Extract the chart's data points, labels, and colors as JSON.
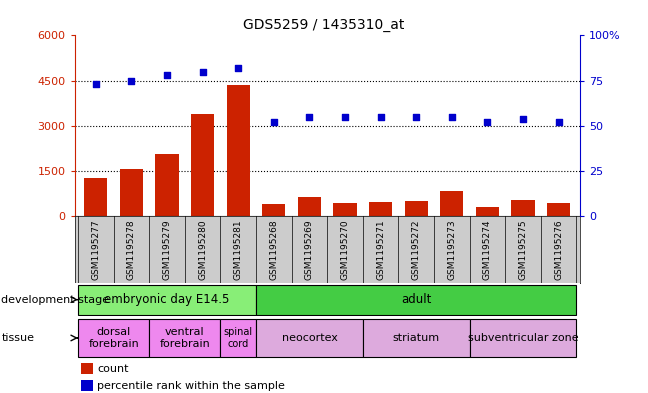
{
  "title": "GDS5259 / 1435310_at",
  "samples": [
    "GSM1195277",
    "GSM1195278",
    "GSM1195279",
    "GSM1195280",
    "GSM1195281",
    "GSM1195268",
    "GSM1195269",
    "GSM1195270",
    "GSM1195271",
    "GSM1195272",
    "GSM1195273",
    "GSM1195274",
    "GSM1195275",
    "GSM1195276"
  ],
  "counts": [
    1280,
    1550,
    2050,
    3380,
    4350,
    390,
    630,
    420,
    480,
    490,
    830,
    320,
    530,
    420
  ],
  "percentiles": [
    73,
    75,
    78,
    80,
    82,
    52,
    55,
    55,
    55,
    55,
    55,
    52,
    54,
    52
  ],
  "ylim_left": [
    0,
    6000
  ],
  "ylim_right": [
    0,
    100
  ],
  "yticks_left": [
    0,
    1500,
    3000,
    4500,
    6000
  ],
  "yticks_right": [
    0,
    25,
    50,
    75,
    100
  ],
  "bar_color": "#cc2200",
  "dot_color": "#0000cc",
  "grid_color": "#aaaaaa",
  "xticklabel_bg": "#cccccc",
  "dev_stage_groups": [
    {
      "label": "embryonic day E14.5",
      "start": 0,
      "end": 5,
      "color": "#88ee77"
    },
    {
      "label": "adult",
      "start": 5,
      "end": 14,
      "color": "#44cc44"
    }
  ],
  "tissue_groups": [
    {
      "label": "dorsal\nforebrain",
      "start": 0,
      "end": 2,
      "color": "#ee88ee"
    },
    {
      "label": "ventral\nforebrain",
      "start": 2,
      "end": 4,
      "color": "#ee88ee"
    },
    {
      "label": "spinal\ncord",
      "start": 4,
      "end": 5,
      "color": "#ee88ee"
    },
    {
      "label": "neocortex",
      "start": 5,
      "end": 8,
      "color": "#ddaadd"
    },
    {
      "label": "striatum",
      "start": 8,
      "end": 11,
      "color": "#ddaadd"
    },
    {
      "label": "subventricular zone",
      "start": 11,
      "end": 14,
      "color": "#ddaadd"
    }
  ],
  "legend_count_label": "count",
  "legend_pct_label": "percentile rank within the sample",
  "dev_stage_label": "development stage",
  "tissue_label": "tissue"
}
